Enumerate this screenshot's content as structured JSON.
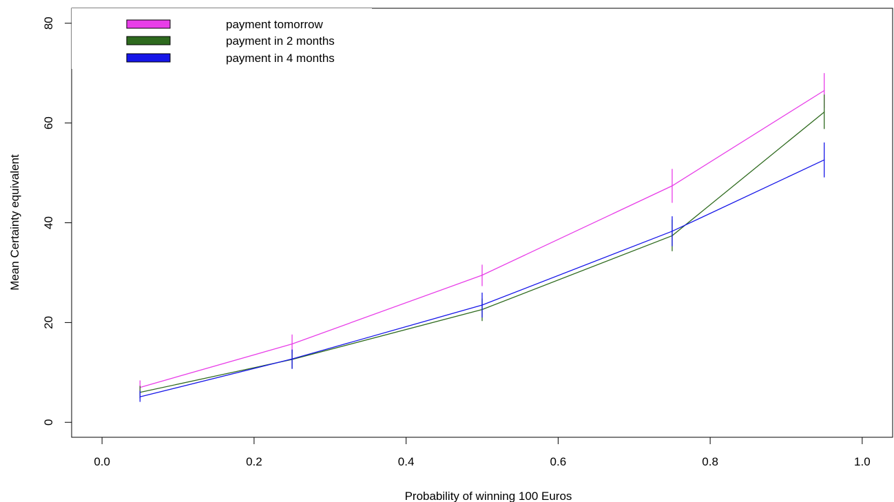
{
  "chart_data": {
    "type": "line",
    "title": "",
    "xlabel": "Probability of winning 100 Euros",
    "ylabel": "Mean Certainty equivalent",
    "xlim": [
      -0.04,
      1.04
    ],
    "ylim": [
      -3,
      83
    ],
    "xticks": [
      0.0,
      0.2,
      0.4,
      0.6,
      0.8,
      1.0
    ],
    "xtick_labels": [
      "0.0",
      "0.2",
      "0.4",
      "0.6",
      "0.8",
      "1.0"
    ],
    "yticks": [
      0,
      20,
      40,
      60,
      80
    ],
    "ytick_labels": [
      "0",
      "20",
      "40",
      "60",
      "80"
    ],
    "x": [
      0.05,
      0.25,
      0.5,
      0.75,
      0.95
    ],
    "grid": false,
    "legend_position": "top-left",
    "series": [
      {
        "name": "payment tomorrow",
        "color": "#e83de8",
        "values": [
          7.0,
          15.7,
          29.5,
          47.4,
          66.5
        ],
        "err_low": [
          5.8,
          13.8,
          27.3,
          44.0,
          63.0
        ],
        "err_high": [
          8.4,
          17.6,
          31.6,
          50.8,
          70.0
        ]
      },
      {
        "name": "payment in 2 months",
        "color": "#2e6a1e",
        "values": [
          6.0,
          12.6,
          22.6,
          37.4,
          62.2
        ],
        "err_low": [
          4.8,
          10.8,
          20.3,
          34.3,
          58.8
        ],
        "err_high": [
          7.3,
          14.5,
          24.8,
          40.6,
          65.7
        ]
      },
      {
        "name": "payment in 4 months",
        "color": "#1616e8",
        "values": [
          5.1,
          12.7,
          23.5,
          38.3,
          52.6
        ],
        "err_low": [
          4.1,
          10.7,
          21.0,
          35.3,
          49.1
        ],
        "err_high": [
          6.3,
          14.6,
          26.0,
          41.3,
          56.1
        ]
      }
    ]
  }
}
